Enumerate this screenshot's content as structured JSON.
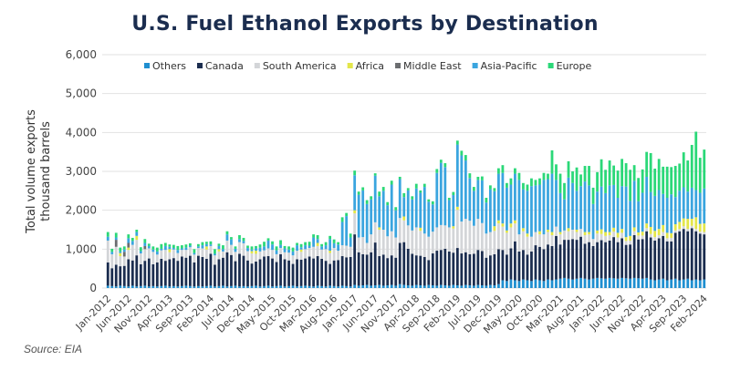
{
  "chart_data": {
    "type": "bar",
    "stacked": true,
    "title": "U.S. Fuel Ethanol Exports by Destination",
    "xlabel": "",
    "ylabel": [
      "Total volume exports",
      "thousand barrels"
    ],
    "ylim": [
      0,
      6000
    ],
    "yticks": [
      0,
      1000,
      2000,
      3000,
      4000,
      5000,
      6000
    ],
    "ytick_labels": [
      "0",
      "1,000",
      "2,000",
      "3,000",
      "4,000",
      "5,000",
      "6,000"
    ],
    "grid": true,
    "legend_position": "top",
    "x_start": "Jan-2012",
    "x_end": "Feb-2024",
    "x_tick_labels": [
      "Jan-2012",
      "Jun-2012",
      "Nov-2012",
      "Apr-2013",
      "Sep-2013",
      "Feb-2014",
      "Jul-2014",
      "Dec-2014",
      "May-2015",
      "Oct-2015",
      "Mar-2016",
      "Aug-2016",
      "Jan-2017",
      "Jun-2017",
      "Nov-2017",
      "Apr-2018",
      "Sep-2018",
      "Feb-2019",
      "Jul-2019",
      "Dec-2019",
      "May-2020",
      "Oct-2020",
      "Mar-2021",
      "Aug-2021",
      "Jan-2022",
      "Jun-2022",
      "Nov-2022",
      "Apr-2023",
      "Sep-2023",
      "Feb-2024"
    ],
    "x_tick_every_months": 5,
    "source": "Source: EIA",
    "series": [
      {
        "name": "Others",
        "color": "#1f8fd0",
        "values": [
          60,
          50,
          40,
          60,
          50,
          40,
          60,
          40,
          50,
          60,
          40,
          50,
          40,
          50,
          60,
          40,
          50,
          40,
          50,
          60,
          50,
          40,
          50,
          40,
          50,
          60,
          40,
          50,
          60,
          40,
          50,
          60,
          40,
          50,
          40,
          50,
          60,
          40,
          50,
          60,
          40,
          50,
          60,
          40,
          50,
          60,
          40,
          50,
          60,
          50,
          40,
          60,
          50,
          40,
          60,
          50,
          40,
          60,
          50,
          40,
          80,
          60,
          70,
          80,
          60,
          70,
          80,
          60,
          70,
          80,
          60,
          100,
          80,
          70,
          60,
          80,
          70,
          60,
          80,
          70,
          60,
          80,
          70,
          60,
          80,
          70,
          60,
          80,
          70,
          60,
          80,
          70,
          60,
          80,
          70,
          100,
          200,
          180,
          220,
          200,
          180,
          220,
          200,
          180,
          220,
          200,
          180,
          220,
          200,
          220,
          240,
          260,
          240,
          220,
          240,
          260,
          240,
          220,
          240,
          260,
          250,
          240,
          260,
          250,
          240,
          260,
          250,
          240,
          260,
          250,
          240,
          260,
          220,
          200,
          220,
          240,
          200,
          220,
          240,
          200,
          220,
          240,
          200,
          220,
          200,
          220
        ]
      },
      {
        "name": "Canada",
        "color": "#1b2d4f",
        "values": [
          600,
          460,
          560,
          500,
          520,
          700,
          650,
          800,
          560,
          640,
          720,
          560,
          620,
          700,
          640,
          700,
          720,
          660,
          760,
          720,
          780,
          620,
          780,
          760,
          700,
          820,
          560,
          690,
          720,
          880,
          800,
          630,
          840,
          780,
          670,
          580,
          620,
          700,
          760,
          760,
          720,
          620,
          810,
          700,
          660,
          560,
          700,
          680,
          700,
          760,
          720,
          760,
          700,
          660,
          560,
          660,
          680,
          760,
          740,
          760,
          1300,
          860,
          800,
          780,
          860,
          1100,
          740,
          800,
          700,
          760,
          720,
          1060,
          1100,
          940,
          820,
          760,
          760,
          740,
          640,
          820,
          900,
          900,
          940,
          880,
          830,
          960,
          830,
          840,
          800,
          820,
          900,
          880,
          720,
          760,
          800,
          900,
          780,
          680,
          800,
          1000,
          760,
          760,
          660,
          760,
          880,
          860,
          820,
          900,
          880,
          1120,
          880,
          980,
          1000,
          1040,
          1000,
          1060,
          900,
          960,
          840,
          920,
          980,
          940,
          960,
          1060,
          940,
          1020,
          860,
          880,
          1100,
          1000,
          1020,
          1200,
          1080,
          1020,
          1060,
          1100,
          1000,
          980,
          1180,
          1260,
          1300,
          1220,
          1340,
          1240,
          1200,
          1160
        ]
      },
      {
        "name": "South America",
        "color": "#d3d5d8",
        "values": [
          560,
          360,
          460,
          260,
          240,
          240,
          400,
          400,
          280,
          300,
          260,
          320,
          200,
          220,
          280,
          180,
          220,
          200,
          170,
          200,
          220,
          200,
          200,
          220,
          240,
          200,
          240,
          200,
          160,
          300,
          260,
          240,
          300,
          320,
          240,
          260,
          200,
          200,
          160,
          200,
          220,
          200,
          160,
          180,
          200,
          220,
          220,
          200,
          240,
          220,
          300,
          260,
          240,
          300,
          280,
          320,
          240,
          280,
          300,
          260,
          540,
          380,
          440,
          300,
          460,
          520,
          680,
          640,
          560,
          620,
          520,
          640,
          560,
          600,
          600,
          720,
          640,
          600,
          600,
          560,
          600,
          640,
          600,
          620,
          620,
          980,
          820,
          860,
          860,
          720,
          800,
          720,
          620,
          600,
          600,
          660,
          600,
          560,
          540,
          460,
          440,
          480,
          460,
          380,
          340,
          320,
          380,
          320,
          280,
          240,
          260,
          240,
          220,
          240,
          200,
          200,
          220,
          200,
          180,
          220,
          160,
          160,
          140,
          140,
          120,
          140,
          100,
          100,
          100,
          100,
          90,
          80,
          90,
          90,
          80,
          100,
          80,
          90,
          60,
          60,
          70,
          60,
          60,
          60,
          50,
          60
        ]
      },
      {
        "name": "Africa",
        "color": "#e3e64a",
        "values": [
          0,
          0,
          0,
          80,
          0,
          60,
          0,
          100,
          0,
          0,
          0,
          0,
          0,
          0,
          0,
          80,
          0,
          0,
          0,
          0,
          0,
          0,
          0,
          0,
          80,
          0,
          0,
          60,
          0,
          0,
          0,
          0,
          0,
          0,
          0,
          60,
          80,
          0,
          0,
          0,
          0,
          0,
          0,
          0,
          0,
          0,
          0,
          60,
          0,
          0,
          0,
          80,
          0,
          0,
          60,
          0,
          0,
          0,
          0,
          0,
          80,
          0,
          0,
          0,
          0,
          0,
          60,
          0,
          0,
          0,
          0,
          0,
          100,
          0,
          0,
          0,
          80,
          0,
          0,
          0,
          0,
          0,
          0,
          0,
          60,
          80,
          0,
          0,
          0,
          0,
          0,
          0,
          0,
          0,
          120,
          80,
          80,
          60,
          100,
          80,
          0,
          80,
          80,
          0,
          0,
          80,
          0,
          60,
          80,
          0,
          60,
          0,
          80,
          0,
          60,
          0,
          80,
          60,
          0,
          80,
          120,
          100,
          80,
          100,
          120,
          100,
          100,
          120,
          100,
          80,
          100,
          120,
          180,
          160,
          160,
          180,
          140,
          120,
          160,
          180,
          200,
          260,
          180,
          300,
          200,
          220
        ]
      },
      {
        "name": "Middle East",
        "color": "#6b6d70",
        "values": [
          0,
          0,
          180,
          0,
          120,
          120,
          0,
          0,
          0,
          80,
          0,
          0,
          0,
          0,
          0,
          0,
          0,
          0,
          0,
          0,
          0,
          0,
          0,
          0,
          0,
          0,
          0,
          0,
          0,
          0,
          0,
          0,
          0,
          0,
          0,
          0,
          0,
          0,
          0,
          0,
          0,
          0,
          0,
          0,
          0,
          0,
          0,
          0,
          0,
          0,
          0,
          0,
          0,
          0,
          0,
          0,
          0,
          0,
          0,
          0,
          0,
          0,
          0,
          0,
          0,
          0,
          0,
          0,
          0,
          0,
          0,
          0,
          0,
          0,
          0,
          0,
          0,
          0,
          0,
          0,
          0,
          0,
          0,
          0,
          0,
          0,
          0,
          0,
          0,
          0,
          0,
          0,
          0,
          0,
          0,
          0,
          0,
          0,
          0,
          0,
          0,
          0,
          0,
          0,
          0,
          0,
          0,
          0,
          0,
          0,
          0,
          0,
          0,
          0,
          0,
          0,
          0,
          0,
          0,
          0,
          0,
          0,
          0,
          0,
          0,
          0,
          0,
          0,
          0,
          0,
          0,
          0,
          0,
          0,
          0,
          0,
          0,
          0,
          0,
          0,
          0,
          0,
          0,
          0,
          0,
          0
        ]
      },
      {
        "name": "Asia-Pacific",
        "color": "#3aa5df",
        "values": [
          100,
          60,
          60,
          40,
          60,
          120,
          100,
          100,
          60,
          80,
          60,
          60,
          80,
          40,
          100,
          60,
          40,
          80,
          40,
          60,
          40,
          40,
          40,
          80,
          60,
          40,
          40,
          80,
          60,
          160,
          140,
          80,
          80,
          60,
          80,
          40,
          60,
          100,
          100,
          200,
          140,
          100,
          80,
          100,
          80,
          100,
          140,
          60,
          100,
          60,
          240,
          100,
          80,
          100,
          300,
          120,
          160,
          600,
          760,
          240,
          900,
          1100,
          1200,
          1000,
          900,
          1200,
          800,
          1000,
          800,
          1200,
          700,
          1000,
          500,
          900,
          800,
          1000,
          900,
          1200,
          900,
          700,
          1400,
          1600,
          1500,
          700,
          800,
          1600,
          1700,
          1500,
          1100,
          900,
          1000,
          1100,
          800,
          1100,
          900,
          1200,
          1300,
          1100,
          1000,
          1200,
          1400,
          1000,
          1100,
          1300,
          1200,
          1200,
          1400,
          1300,
          1500,
          1200,
          1000,
          800,
          1300,
          1200,
          1000,
          1100,
          1300,
          1200,
          900,
          1000,
          1100,
          1000,
          1200,
          1100,
          900,
          1100,
          1300,
          900,
          1200,
          800,
          1000,
          1200,
          900,
          900,
          1000,
          800,
          900,
          1000,
          700,
          800,
          800,
          700,
          800,
          700,
          800,
          900
        ]
      },
      {
        "name": "Europe",
        "color": "#2bd878",
        "values": [
          120,
          80,
          120,
          100,
          80,
          100,
          80,
          60,
          100,
          100,
          60,
          80,
          100,
          120,
          80,
          60,
          80,
          100,
          80,
          80,
          60,
          100,
          60,
          80,
          60,
          80,
          120,
          60,
          100,
          80,
          60,
          60,
          100,
          80,
          60,
          80,
          60,
          80,
          120,
          60,
          80,
          100,
          120,
          60,
          80,
          100,
          60,
          80,
          80,
          100,
          80,
          100,
          60,
          80,
          80,
          100,
          60,
          120,
          80,
          100,
          120,
          80,
          80,
          100,
          80,
          60,
          120,
          100,
          80,
          100,
          80,
          60,
          100,
          60,
          80,
          120,
          60,
          80,
          60,
          80,
          100,
          80,
          100,
          60,
          80,
          100,
          120,
          140,
          120,
          100,
          80,
          100,
          120,
          100,
          80,
          140,
          200,
          120,
          160,
          140,
          180,
          160,
          160,
          200,
          140,
          160,
          180,
          140,
          600,
          400,
          500,
          420,
          420,
          300,
          600,
          300,
          400,
          500,
          420,
          500,
          700,
          600,
          640,
          500,
          700,
          700,
          600,
          800,
          400,
          600,
          600,
          640,
          1000,
          700,
          800,
          700,
          800,
          700,
          800,
          700,
          900,
          800,
          1100,
          1500,
          900,
          1000
        ]
      }
    ]
  }
}
